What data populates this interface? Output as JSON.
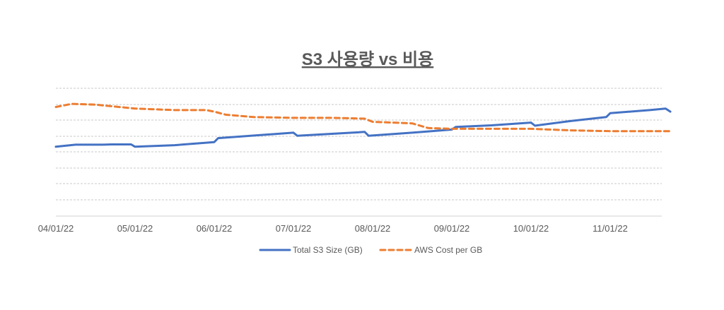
{
  "chart_data": {
    "type": "line",
    "title": "S3 사용량 vs 비용",
    "categories": [
      "04/01/22",
      "05/01/22",
      "06/01/22",
      "07/01/22",
      "08/01/22",
      "09/01/22",
      "10/01/22",
      "11/01/22"
    ],
    "grid": true,
    "legend": "bottom",
    "series": [
      {
        "name": "Total S3 Size (GB)",
        "color": "#4472C4",
        "style": "solid",
        "values": [
          {
            "x": 0.0,
            "y": 4.45
          },
          {
            "x": 0.25,
            "y": 4.58
          },
          {
            "x": 0.6,
            "y": 4.58
          },
          {
            "x": 0.7,
            "y": 4.6
          },
          {
            "x": 0.95,
            "y": 4.6
          },
          {
            "x": 1.0,
            "y": 4.45
          },
          {
            "x": 1.5,
            "y": 4.55
          },
          {
            "x": 2.0,
            "y": 4.75
          },
          {
            "x": 2.05,
            "y": 5.0
          },
          {
            "x": 3.0,
            "y": 5.35
          },
          {
            "x": 3.05,
            "y": 5.15
          },
          {
            "x": 3.9,
            "y": 5.4
          },
          {
            "x": 3.95,
            "y": 5.15
          },
          {
            "x": 4.5,
            "y": 5.35
          },
          {
            "x": 5.0,
            "y": 5.55
          },
          {
            "x": 5.05,
            "y": 5.72
          },
          {
            "x": 5.5,
            "y": 5.82
          },
          {
            "x": 6.0,
            "y": 6.0
          },
          {
            "x": 6.05,
            "y": 5.8
          },
          {
            "x": 6.5,
            "y": 6.1
          },
          {
            "x": 6.95,
            "y": 6.35
          },
          {
            "x": 7.0,
            "y": 6.6
          },
          {
            "x": 7.5,
            "y": 6.8
          },
          {
            "x": 7.7,
            "y": 6.9
          },
          {
            "x": 7.76,
            "y": 6.7
          }
        ]
      },
      {
        "name": "AWS Cost per GB",
        "color": "#ED7D31",
        "style": "dashed",
        "values": [
          {
            "x": 0.0,
            "y": 7.0
          },
          {
            "x": 0.2,
            "y": 7.2
          },
          {
            "x": 0.5,
            "y": 7.15
          },
          {
            "x": 1.0,
            "y": 6.9
          },
          {
            "x": 1.5,
            "y": 6.8
          },
          {
            "x": 1.9,
            "y": 6.8
          },
          {
            "x": 2.0,
            "y": 6.7
          },
          {
            "x": 2.15,
            "y": 6.5
          },
          {
            "x": 2.5,
            "y": 6.35
          },
          {
            "x": 3.0,
            "y": 6.3
          },
          {
            "x": 3.5,
            "y": 6.3
          },
          {
            "x": 3.9,
            "y": 6.25
          },
          {
            "x": 4.0,
            "y": 6.05
          },
          {
            "x": 4.5,
            "y": 5.95
          },
          {
            "x": 4.7,
            "y": 5.65
          },
          {
            "x": 5.0,
            "y": 5.6
          },
          {
            "x": 5.5,
            "y": 5.6
          },
          {
            "x": 6.0,
            "y": 5.6
          },
          {
            "x": 6.5,
            "y": 5.5
          },
          {
            "x": 7.0,
            "y": 5.45
          },
          {
            "x": 7.5,
            "y": 5.45
          },
          {
            "x": 7.76,
            "y": 5.45
          }
        ]
      }
    ],
    "ylim": [
      0,
      10
    ],
    "xlim": [
      0,
      7.76
    ]
  }
}
